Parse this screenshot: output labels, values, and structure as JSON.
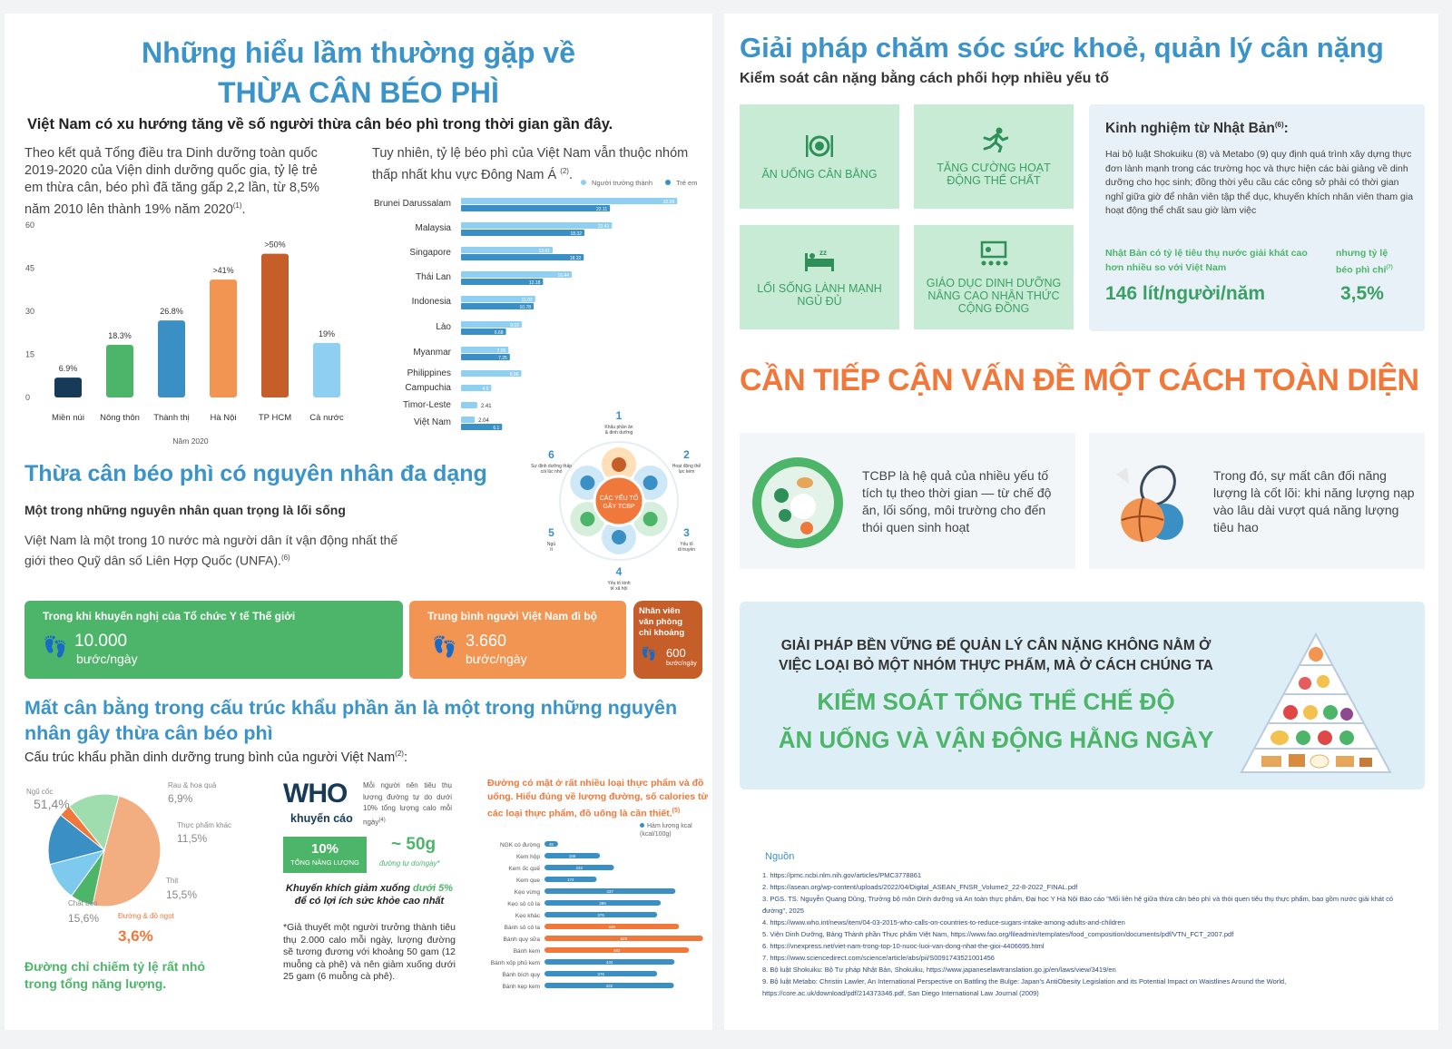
{
  "left": {
    "title1": "Những hiểu lầm thường gặp về",
    "title2": "THỪA CÂN BÉO PHÌ",
    "subtitle": "Việt Nam có xu hướng tăng về số người thừa cân béo phì trong thời gian gần đây.",
    "para1": "Theo kết quả Tổng điều tra Dinh dưỡng toàn quốc 2019-2020 của Viện dinh dưỡng quốc gia, tỷ lệ trẻ em thừa cân, béo phì đã tăng gấp 2,2 lần, từ 8,5% năm 2010 lên thành 19% năm 2020",
    "para1_sup": "(1)",
    "para2": "Tuy nhiên, tỷ lệ béo phì của Việt Nam vẫn thuộc nhóm thấp nhất khu vực Đông Nam Á",
    "para2_sup": "(2)",
    "bar_xlabel": "Năm 2020",
    "legend_adult": "Người trưởng thành",
    "legend_child": "Trẻ em",
    "cause_title": "Thừa cân béo phì có nguyên nhân đa dạng",
    "cause_sub": "Một trong những nguyên nhân quan trọng là lối sống",
    "cause_text": "Việt Nam là một trong 10 nước mà người dân ít vận động nhất thế giới theo Quỹ dân số Liên Hợp Quốc (UNFA).",
    "cause_sup": "(6)",
    "wheel_center": "CÁC YẾU TỐ GÂY TCBP",
    "wheel": [
      {
        "n": "1",
        "label": "Khẩu phần ăn & dinh dưỡng"
      },
      {
        "n": "2",
        "label": "Hoạt động thể lực kém"
      },
      {
        "n": "3",
        "label": "Yếu tố di truyền"
      },
      {
        "n": "4",
        "label": "Yếu tố kinh tế xã hội"
      },
      {
        "n": "5",
        "label": "Ngủ ít"
      },
      {
        "n": "6",
        "label": "Sự định dưỡng thấp cói lúc nhỏ"
      }
    ],
    "steps": {
      "who_text": "Trong khi khuyến nghị của Tổ chức Y tế Thế giới",
      "who_val": "10.000",
      "unit": "bước/ngày",
      "vn_text": "Trung bình người Việt Nam đi bộ",
      "vn_val": "3.660",
      "office_text": "Nhân viên văn phòng chỉ khoảng",
      "office_val": "600",
      "office_unit": "bước/ngày"
    },
    "diet_title": "Mất cân bằng trong cấu trúc khẩu phần ăn là một trong những nguyên nhân gây thừa cân béo phì",
    "diet_sub": "Cấu trúc khẩu phần dinh dưỡng trung bình của người Việt Nam",
    "diet_sup": "(2)",
    "pie_note": "Đường chỉ chiếm tỷ lệ rất nhỏ trong tổng năng lượng.",
    "who_logo": "WHO",
    "who_khuyen": "khuyến cáo",
    "who_advice": "Mỗi người nên tiêu thụ lượng đường tự do dưới 10% tổng lượng calo mỗi ngày",
    "who_advice_sup": "(4)",
    "pct10": "10%",
    "pct10_label": "TỔNG NĂNG LƯỢNG",
    "g50": "~ 50g",
    "g50_label": "đường tự do/ngày*",
    "encourage1": "Khuyến khích giảm xuống",
    "encourage_hl": "dưới 5%",
    "encourage2": "để có lợi ích sức khỏe cao nhất",
    "hypo": "*Giả thuyết một người trưởng thành tiêu thụ 2.000 calo mỗi ngày, lượng đường sẽ tương đương với khoảng 50 gam (12 muỗng cà phê) và nên giảm xuống dưới 25 gam (6 muỗng cà phê).",
    "sugar_note": "Đường có mặt ở rất nhiều loại thực phẩm và đồ uống. Hiểu đúng về lượng đường, số calories từ các loại thực phẩm, đồ uống là cần thiết.",
    "sugar_note_sup": "(5)",
    "sugar_legend": "Hàm lượng kcal (kcal/100g)"
  },
  "right": {
    "title": "Giải pháp chăm sóc sức khoẻ, quản lý cân nặng",
    "subtitle": "Kiểm soát cân nặng bằng cách phối hợp nhiều yếu tố",
    "tiles": [
      "ĂN UỐNG CÂN BẰNG",
      "TĂNG CƯỜNG HOẠT ĐỘNG THỂ CHẤT",
      "LỐI SỐNG LÀNH MẠNH NGỦ ĐỦ",
      "GIÁO DỤC DINH DƯỠNG NÂNG CAO NHẬN THỨC CỘNG ĐỒNG"
    ],
    "japan_title": "Kinh nghiệm từ Nhật Bản",
    "japan_sup": "(6)",
    "japan_text": "Hai bộ luật Shokuiku (8) và Metabo (9) quy định quá trình xây dựng thực đơn lành mạnh trong các trường học và thực hiện các bài giảng về dinh dưỡng cho học sinh; đồng thời yêu cầu các công sở phải có thời gian nghỉ giữa giờ để nhân viên tập thể dục, khuyến khích nhân viên tham gia hoạt động thể chất sau giờ làm việc",
    "japan_stat1_label": "Nhật Bản có tỷ lệ tiêu thụ nước giải khát cao hơn nhiều so với Việt Nam",
    "japan_stat1": "146 lít/người/năm",
    "japan_stat2_label": "nhưng tỷ lệ béo phì chỉ",
    "japan_stat2_sup": "(7)",
    "japan_stat2": "3,5%",
    "holistic": "CẦN TIẾP CẬN VẤN ĐỀ MỘT CÁCH TOÀN DIỆN",
    "card1": "TCBP là hệ quả của nhiều yếu tố tích tụ theo thời gian — từ chế độ ăn, lối sống, môi trường cho đến thói quen sinh hoạt",
    "card2": "Trong đó, sự mất cân đối năng lượng là cốt lõi: khi năng lượng nạp vào lâu dài vượt quá năng lượng tiêu hao",
    "sust1": "GIẢI PHÁP BỀN VỮNG ĐỂ QUẢN LÝ CÂN NẶNG KHÔNG NẰM Ở VIỆC LOẠI BỎ MỘT NHÓM THỰC PHẨM, MÀ Ở CÁCH CHÚNG TA",
    "sust2a": "KIỂM SOÁT TỔNG THỂ CHẾ ĐỘ",
    "sust2b": "ĂN UỐNG VÀ VẬN ĐỘNG HẰNG NGÀY",
    "sources_title": "Nguồn",
    "sources": [
      "1.  https://pmc.ncbi.nlm.nih.gov/articles/PMC3778861",
      "2. https://asean.org/wp-content/uploads/2022/04/Digital_ASEAN_FNSR_Volume2_22-8-2022_FINAL.pdf",
      "3. PGS. TS. Nguyễn Quang Dũng, Trưởng bộ môn Dinh dưỡng và An toàn thực phẩm, Đại học Y Hà Nội  Báo cáo \"Mối liên hệ giữa thừa cân béo phì và thói quen tiêu thụ thực phẩm, bao gồm nước giải khát có đường\", 2025",
      "4. https://www.who.int/news/item/04-03-2015-who-calls-on-countries-to-reduce-sugars-intake-among-adults-and-children",
      "5. Viện Dinh Dưỡng, Bảng Thành phần Thực phẩm Việt Nam, https://www.fao.org/fileadmin/templates/food_composition/documents/pdf/VTN_FCT_2007.pdf",
      "6. https://vnexpress.net/viet-nam-trong-top-10-nuoc-luoi-van-dong-nhat-the-gioi-4406695.html",
      "7. https://www.sciencedirect.com/science/article/abs/pii/S0091743521001456",
      "8. Bộ luật Shokuiku: Bộ Tư pháp Nhật Bản, Shokuiku, https://www.japaneselawtranslation.go.jp/en/laws/view/3419/en",
      "9. Bộ luật Metabo: Christin Lawler, An International Perspective on Battling the Bulge: Japan's AntiObesity Legislation and its Potential Impact on Waistlines Around the World, https://core.ac.uk/download/pdf/214373346.pdf, San Diego International Law Journal (2009)"
    ]
  },
  "chart_data": [
    {
      "type": "bar",
      "title": "",
      "xlabel": "Năm 2020",
      "ylabel": "",
      "ylim": [
        0,
        60
      ],
      "yticks": [
        "60",
        "45",
        "30",
        "15",
        "0"
      ],
      "categories": [
        "Miền núi",
        "Nông thôn",
        "Thành thị",
        "Hà Nội",
        "TP HCM",
        "Cả nước"
      ],
      "values": [
        6.9,
        18.3,
        26.8,
        41,
        50,
        19
      ],
      "labels": [
        "6.9%",
        "18.3%",
        "26.8%",
        ">41%",
        ">50%",
        "19%"
      ],
      "colors": [
        "#163a57",
        "#4db56a",
        "#3a8fc4",
        "#f29452",
        "#c55e28",
        "#8fd0f2"
      ]
    },
    {
      "type": "bar",
      "orientation": "horizontal",
      "title": "",
      "categories": [
        "Brunei Darussalam",
        "Malaysia",
        "Singapore",
        "Thái Lan",
        "Indonesia",
        "Lào",
        "Myanmar",
        "Philippines",
        "Campuchia",
        "Timor-Leste",
        "Việt Nam"
      ],
      "series": [
        {
          "name": "Người trưởng thành",
          "values": [
            32.09,
            22.41,
            13.61,
            16.44,
            11.02,
            9.02,
            7.05,
            8.96,
            4.5,
            2.41,
            2.04
          ]
        },
        {
          "name": "Trẻ em",
          "values": [
            22.11,
            18.32,
            18.22,
            12.18,
            10.78,
            6.68,
            7.25,
            null,
            null,
            null,
            6.1
          ]
        }
      ],
      "labels_adult": [
        "32.09",
        "22.41",
        "13.61",
        "16.44",
        "11.02",
        "9.02",
        "7.05",
        "8.96",
        "4.5",
        "2.41",
        "2.04"
      ],
      "labels_child": [
        "22.11",
        "18.32",
        "18.22",
        "12.18",
        "10.78",
        "6.68",
        "7.25",
        "",
        "",
        "",
        "6.1"
      ]
    },
    {
      "type": "pie",
      "title": "",
      "categories": [
        "Ngũ cốc",
        "Rau & hoa quả",
        "Thực phẩm khác",
        "Thịt",
        "Đường & đồ ngọt",
        "Chất béo"
      ],
      "values": [
        51.4,
        6.9,
        11.5,
        15.5,
        3.6,
        15.6
      ],
      "labels": [
        "51,4%",
        "6,9%",
        "11,5%",
        "15,5%",
        "3,6%",
        "15,6%"
      ],
      "colors": [
        "#f2ad80",
        "#4db56a",
        "#7ec9ee",
        "#3a8fc4",
        "#f0783a",
        "#9fdcae"
      ]
    },
    {
      "type": "bar",
      "orientation": "horizontal",
      "title": "",
      "legend": "Hàm lượng kcal (kcal/100g)",
      "categories": [
        "NGK có đường",
        "Kem hộp",
        "Kem ốc quế",
        "Kem que",
        "Kẹo vừng",
        "Kẹo sô cô la",
        "Kẹo khác",
        "Bánh sô cô la",
        "Bánh quy sữa",
        "Bánh kem",
        "Bánh xốp phủ kem",
        "Bánh bích quy",
        "Bánh kẹp kem"
      ],
      "values": [
        45,
        185,
        232,
        174,
        437,
        388,
        376,
        449,
        529,
        482,
        434,
        376,
        432
      ],
      "highlight": [
        false,
        false,
        false,
        false,
        false,
        false,
        false,
        true,
        true,
        true,
        false,
        false,
        false
      ]
    }
  ]
}
